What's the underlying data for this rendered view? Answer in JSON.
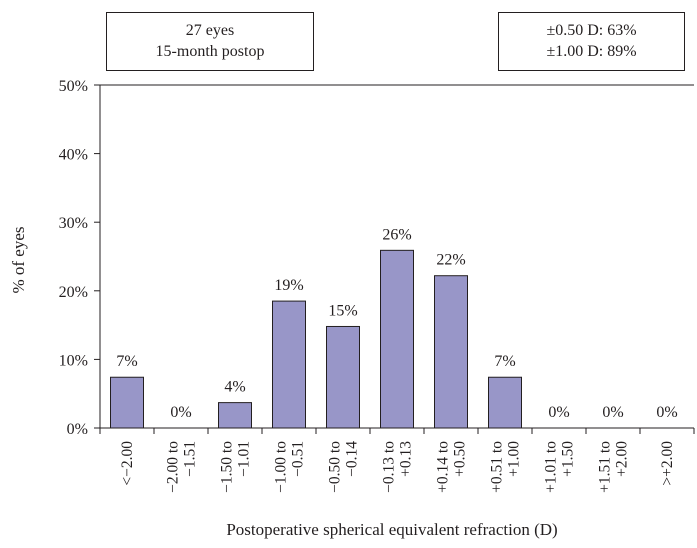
{
  "annotations": {
    "left_box": {
      "line1": "27 eyes",
      "line2": "15-month postop"
    },
    "right_box": {
      "line1": "±0.50 D: 63%",
      "line2": "±1.00 D: 89%"
    }
  },
  "colors": {
    "bar_fill": "#9896c8",
    "bar_stroke": "#231f20",
    "axis": "#231f20",
    "text": "#231f20"
  },
  "chart_data": {
    "type": "bar",
    "title": "",
    "xlabel": "Postoperative spherical equivalent refraction (D)",
    "ylabel": "% of eyes",
    "ylim": [
      0,
      50
    ],
    "yticks": [
      0,
      10,
      20,
      30,
      40,
      50
    ],
    "ytick_labels": [
      "0%",
      "10%",
      "20%",
      "30%",
      "40%",
      "50%"
    ],
    "grid": false,
    "legend": false,
    "categories": [
      "<−2.00",
      "−2.00 to −1.51",
      "−1.50 to −1.01",
      "−1.00 to −0.51",
      "−0.50 to −0.14",
      "−0.13 to +0.13",
      "+0.14 to +0.50",
      "+0.51 to +1.00",
      "+1.01 to +1.50",
      "+1.51 to +2.00",
      ">+2.00"
    ],
    "category_lines": [
      [
        "<−2.00"
      ],
      [
        "−2.00 to",
        "−1.51"
      ],
      [
        "−1.50 to",
        "−1.01"
      ],
      [
        "−1.00 to",
        "−0.51"
      ],
      [
        "−0.50 to",
        "−0.14"
      ],
      [
        "−0.13 to",
        "+0.13"
      ],
      [
        "+0.14 to",
        "+0.50"
      ],
      [
        "+0.51 to",
        "+1.00"
      ],
      [
        "+1.01 to",
        "+1.50"
      ],
      [
        "+1.51 to",
        "+2.00"
      ],
      [
        ">+2.00"
      ]
    ],
    "values": [
      7.4,
      0,
      3.7,
      18.5,
      14.8,
      25.9,
      22.2,
      7.4,
      0,
      0,
      0
    ],
    "data_labels": [
      "7%",
      "0%",
      "4%",
      "19%",
      "15%",
      "26%",
      "22%",
      "7%",
      "0%",
      "0%",
      "0%"
    ]
  }
}
